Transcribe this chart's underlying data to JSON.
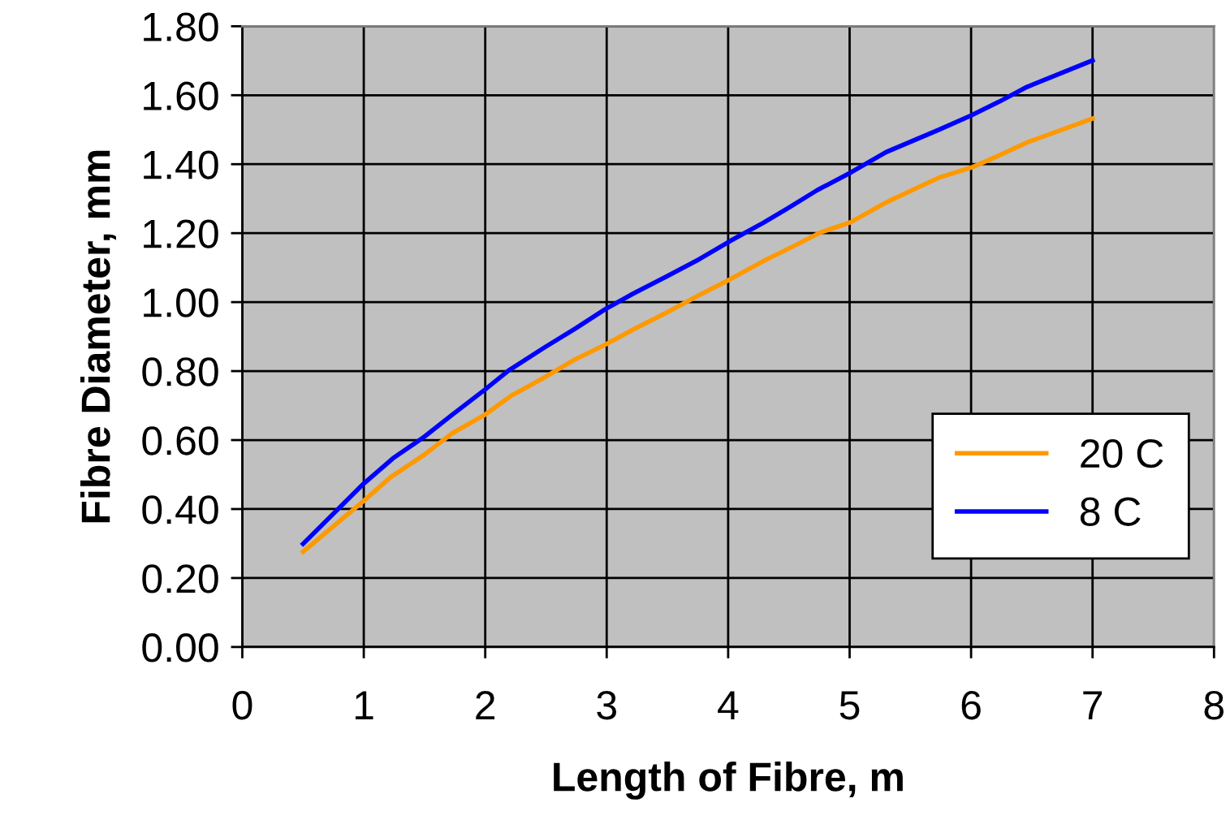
{
  "chart_data": {
    "type": "line",
    "xlabel": "Length of Fibre, m",
    "ylabel": "Fibre Diameter, mm",
    "xlim": [
      0,
      8
    ],
    "xticks": [
      0,
      1,
      2,
      3,
      4,
      5,
      6,
      7,
      8
    ],
    "ylim": [
      0,
      1.8
    ],
    "yticks": [
      {
        "value": 0,
        "label": "0.00"
      },
      {
        "value": 0.2,
        "label": "0.20"
      },
      {
        "value": 0.4,
        "label": "0.40"
      },
      {
        "value": 0.6,
        "label": "0.60"
      },
      {
        "value": 0.8,
        "label": "0.80"
      },
      {
        "value": 1.0,
        "label": "1.00"
      },
      {
        "value": 1.2,
        "label": "1.20"
      },
      {
        "value": 1.4,
        "label": "1.40"
      },
      {
        "value": 1.6,
        "label": "1.60"
      },
      {
        "value": 1.8,
        "label": "1.80"
      }
    ],
    "grid": true,
    "legend": "lower right",
    "marker": "none",
    "line_style": "solid",
    "series": [
      {
        "name": "20 C",
        "color": "#ff9900",
        "x": [
          0.5,
          1.0,
          1.22,
          1.5,
          1.73,
          2.0,
          2.22,
          2.49,
          2.74,
          2.99,
          3.22,
          3.49,
          3.76,
          4.02,
          4.29,
          4.56,
          4.76,
          5.01,
          5.3,
          5.5,
          5.73,
          6.0,
          6.23,
          6.46,
          7.0
        ],
        "values": [
          0.276,
          0.424,
          0.492,
          0.558,
          0.62,
          0.674,
          0.73,
          0.782,
          0.834,
          0.877,
          0.921,
          0.969,
          1.02,
          1.067,
          1.119,
          1.166,
          1.202,
          1.232,
          1.289,
          1.322,
          1.36,
          1.39,
          1.425,
          1.463,
          1.532
        ]
      },
      {
        "name": "8 C",
        "color": "#0000ff",
        "x": [
          0.5,
          1.0,
          1.24,
          1.5,
          1.73,
          2.0,
          2.19,
          2.49,
          2.74,
          2.99,
          3.22,
          3.49,
          3.76,
          4.02,
          4.29,
          4.49,
          4.73,
          5.01,
          5.3,
          5.73,
          6.0,
          6.23,
          6.46,
          7.0
        ],
        "values": [
          0.299,
          0.474,
          0.547,
          0.61,
          0.674,
          0.747,
          0.801,
          0.869,
          0.923,
          0.98,
          1.025,
          1.074,
          1.124,
          1.178,
          1.23,
          1.272,
          1.324,
          1.376,
          1.435,
          1.499,
          1.541,
          1.581,
          1.624,
          1.701
        ]
      }
    ]
  }
}
